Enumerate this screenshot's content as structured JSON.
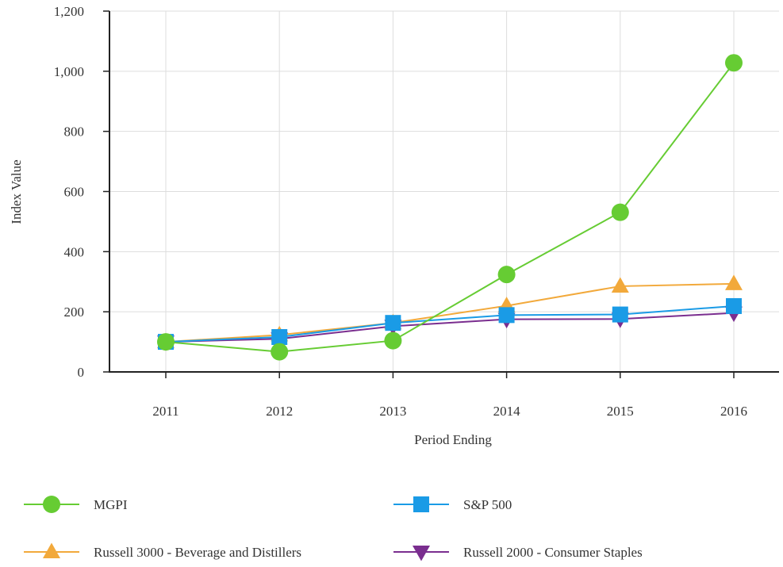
{
  "chart_data": {
    "type": "line",
    "title": "",
    "xlabel": "Period Ending",
    "ylabel": "Index Value",
    "categories": [
      "2011",
      "2012",
      "2013",
      "2014",
      "2015",
      "2016"
    ],
    "ylim": [
      0,
      1200
    ],
    "yticks": [
      0,
      200,
      400,
      600,
      800,
      1000,
      1200
    ],
    "ytick_labels": [
      "0",
      "200",
      "400",
      "600",
      "800",
      "1,000",
      "1,200"
    ],
    "grid": true,
    "legend_position": "bottom",
    "series": [
      {
        "name": "MGPI",
        "color": "#66cc33",
        "marker": "circle",
        "values": [
          100,
          67,
          104,
          324,
          531,
          1028
        ]
      },
      {
        "name": "S&P 500",
        "color": "#1a9be6",
        "marker": "square",
        "values": [
          100,
          116,
          163,
          189,
          191,
          219
        ]
      },
      {
        "name": "Russell 3000 - Beverage and Distillers",
        "color": "#f2a93b",
        "marker": "triangle-up",
        "values": [
          100,
          123,
          163,
          220,
          285,
          293
        ]
      },
      {
        "name": "Russell 2000 - Consumer Staples",
        "color": "#7a2e8f",
        "marker": "triangle-down",
        "values": [
          100,
          110,
          152,
          175,
          176,
          196
        ]
      }
    ]
  }
}
